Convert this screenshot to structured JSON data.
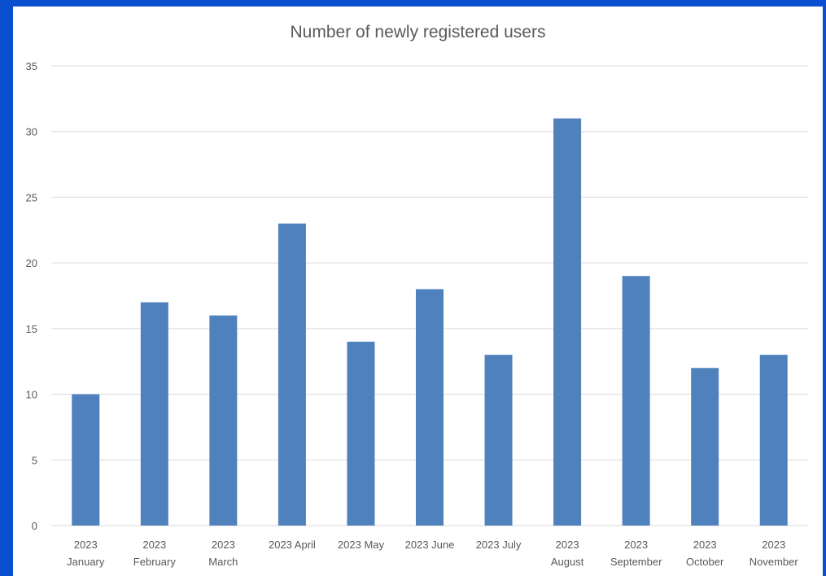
{
  "chart_data": {
    "type": "bar",
    "title": "Number of newly registered users",
    "categories": [
      [
        "2023",
        "January"
      ],
      [
        "2023",
        "February"
      ],
      [
        "2023",
        "March"
      ],
      [
        "2023 April"
      ],
      [
        "2023 May"
      ],
      [
        "2023 June"
      ],
      [
        "2023 July"
      ],
      [
        "2023",
        "August"
      ],
      [
        "2023",
        "September"
      ],
      [
        "2023",
        "October"
      ],
      [
        "2023",
        "November"
      ]
    ],
    "values": [
      10,
      17,
      16,
      23,
      14,
      18,
      13,
      31,
      19,
      12,
      13
    ],
    "ylim": [
      0,
      35
    ],
    "yticks": [
      "0",
      "5",
      "10",
      "15",
      "20",
      "25",
      "30",
      "35"
    ],
    "grid": true,
    "legend": "none",
    "colors": {
      "bar": "#4f81bd",
      "grid": "#d9d9d9",
      "frame": "#0b4fd1",
      "text": "#595959"
    }
  }
}
